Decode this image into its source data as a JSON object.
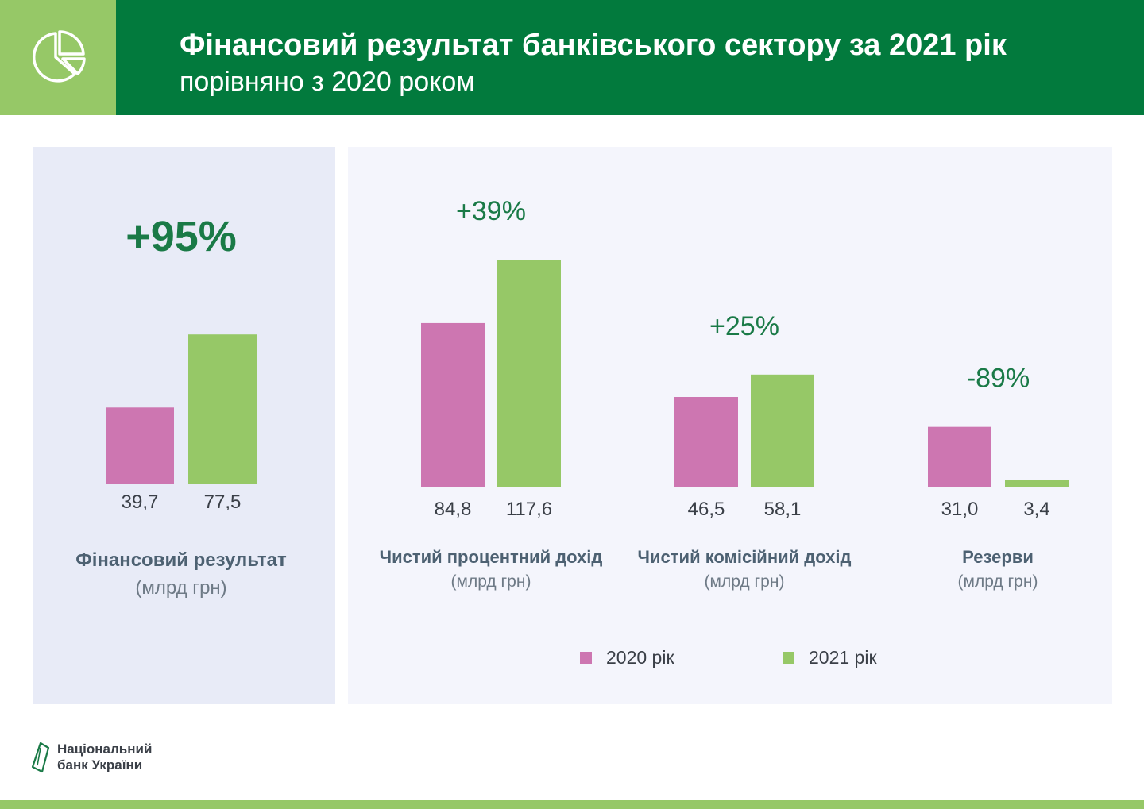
{
  "header": {
    "title": "Фінансовий результат банківського сектору за 2021 рік",
    "subtitle": "порівняно з 2020 роком",
    "icon": "pie-chart-icon"
  },
  "colors": {
    "header_bg": "#027a3d",
    "accent_green": "#96c867",
    "series_2020": "#cd76b1",
    "series_2021": "#96c867",
    "change_text": "#1a7a47",
    "category_title": "#4d6172",
    "unit_text": "#6e7a86",
    "value_text": "#3a3f47"
  },
  "legend": {
    "items": [
      {
        "label": "2020 рік",
        "color": "#cd76b1"
      },
      {
        "label": "2021 рік",
        "color": "#96c867"
      }
    ]
  },
  "footer": {
    "logo_line1": "Національний",
    "logo_line2": "банк України"
  },
  "chart_data": [
    {
      "type": "bar",
      "categories": [
        "Фінансовий результат"
      ],
      "unit_label": "(млрд грн)",
      "series": [
        {
          "name": "2020 рік",
          "values": [
            39.7
          ],
          "labels": [
            "39,7"
          ]
        },
        {
          "name": "2021 рік",
          "values": [
            77.5
          ],
          "labels": [
            "77,5"
          ]
        }
      ],
      "change_labels": [
        "+95%"
      ]
    },
    {
      "type": "bar",
      "categories": [
        "Чистий процентний дохід",
        "Чистий комісійний дохід",
        "Резерви"
      ],
      "unit_label": "(млрд грн)",
      "series": [
        {
          "name": "2020 рік",
          "values": [
            84.8,
            46.5,
            31.0
          ],
          "labels": [
            "84,8",
            "46,5",
            "31,0"
          ]
        },
        {
          "name": "2021 рік",
          "values": [
            117.6,
            58.1,
            3.4
          ],
          "labels": [
            "117,6",
            "58,1",
            "3,4"
          ]
        }
      ],
      "change_labels": [
        "+39%",
        "+25%",
        "-89%"
      ]
    }
  ]
}
